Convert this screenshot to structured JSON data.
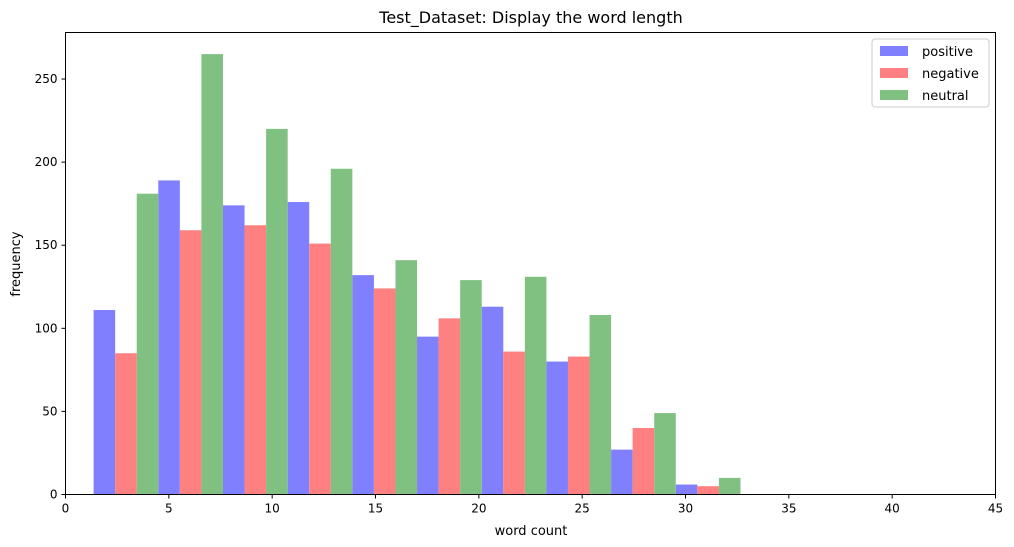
{
  "chart_data": {
    "type": "bar",
    "title": "Test_Dataset: Display the word length",
    "xlabel": "word count",
    "ylabel": "frequency",
    "xlim": [
      0,
      45
    ],
    "ylim": [
      0,
      278
    ],
    "xticks": [
      0,
      5,
      10,
      15,
      20,
      25,
      30,
      35,
      40,
      45
    ],
    "yticks": [
      0,
      50,
      100,
      150,
      200,
      250
    ],
    "bin_edges": [
      1.36,
      4.49,
      7.62,
      10.75,
      13.88,
      17.01,
      20.14,
      23.27,
      26.4,
      29.53,
      32.66
    ],
    "grid": false,
    "legend_position": "top-right",
    "series": [
      {
        "name": "positive",
        "color": "#8080ff",
        "values": [
          111,
          189,
          174,
          176,
          132,
          95,
          113,
          80,
          27,
          6
        ]
      },
      {
        "name": "negative",
        "color": "#ff8080",
        "values": [
          85,
          159,
          162,
          151,
          124,
          106,
          86,
          83,
          40,
          5
        ]
      },
      {
        "name": "neutral",
        "color": "#80c080",
        "values": [
          181,
          265,
          220,
          196,
          141,
          129,
          131,
          108,
          49,
          10
        ]
      }
    ]
  }
}
